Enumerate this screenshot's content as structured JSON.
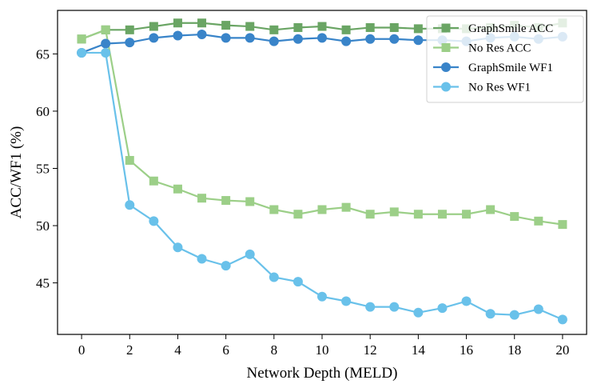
{
  "chart_data": {
    "type": "line",
    "title": "",
    "xlabel": "Network Depth (MELD)",
    "ylabel": "ACC/WF1 (%)",
    "xlim": [
      -1,
      21
    ],
    "ylim": [
      40.5,
      68.8
    ],
    "xticks": [
      0,
      2,
      4,
      6,
      8,
      10,
      12,
      14,
      16,
      18,
      20
    ],
    "yticks": [
      45,
      50,
      55,
      60,
      65
    ],
    "legend_position": "top-right",
    "x": [
      0,
      1,
      2,
      3,
      4,
      5,
      6,
      7,
      8,
      9,
      10,
      11,
      12,
      13,
      14,
      15,
      16,
      17,
      18,
      19,
      20
    ],
    "series": [
      {
        "name": "GraphSmile ACC",
        "color": "#6aa564",
        "marker": "square",
        "values": [
          66.3,
          67.1,
          67.1,
          67.4,
          67.7,
          67.7,
          67.5,
          67.4,
          67.1,
          67.3,
          67.4,
          67.1,
          67.3,
          67.3,
          67.2,
          67.2,
          67.2,
          67.3,
          67.5,
          67.3,
          67.7
        ]
      },
      {
        "name": "No Res ACC",
        "color": "#9ccf88",
        "marker": "square",
        "values": [
          66.3,
          67.1,
          55.7,
          53.9,
          53.2,
          52.4,
          52.2,
          52.1,
          51.4,
          51.0,
          51.4,
          51.6,
          51.0,
          51.2,
          51.0,
          51.0,
          51.0,
          51.4,
          50.8,
          50.4,
          50.1
        ]
      },
      {
        "name": "GraphSmile WF1",
        "color": "#3984c9",
        "marker": "circle",
        "values": [
          65.1,
          65.9,
          66.0,
          66.4,
          66.6,
          66.7,
          66.4,
          66.4,
          66.1,
          66.3,
          66.4,
          66.1,
          66.3,
          66.3,
          66.2,
          66.2,
          66.1,
          66.4,
          66.5,
          66.3,
          66.5
        ]
      },
      {
        "name": "No Res WF1",
        "color": "#69c1ea",
        "marker": "circle",
        "values": [
          65.1,
          65.1,
          51.8,
          50.4,
          48.1,
          47.1,
          46.5,
          47.5,
          45.5,
          45.1,
          43.8,
          43.4,
          42.9,
          42.9,
          42.4,
          42.8,
          43.4,
          42.3,
          42.2,
          42.7,
          41.8
        ]
      }
    ]
  }
}
